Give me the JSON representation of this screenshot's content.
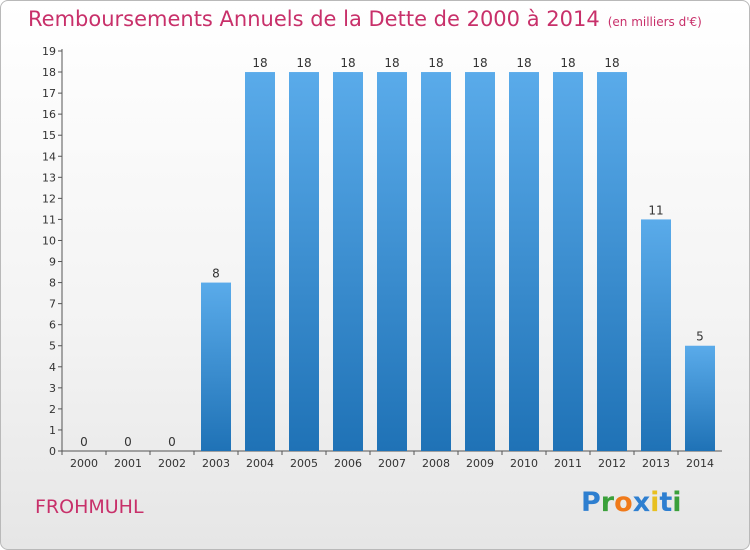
{
  "header": {
    "title": "Remboursements Annuels de la Dette de 2000 à 2014",
    "unit": "(en milliers d'€)"
  },
  "commune": "FROHMUHL",
  "logo": {
    "text": "Proxiti",
    "letter_colors": [
      "#2e7fd0",
      "#3aa03a",
      "#f07a1a",
      "#2e7fd0",
      "#e8c020",
      "#2e7fd0",
      "#3aa03a"
    ]
  },
  "colors": {
    "bar_top": "#5aabea",
    "bar_bottom": "#1f72b6",
    "axis": "#555555",
    "title": "#c8306a"
  },
  "chart_data": {
    "type": "bar",
    "title": "Remboursements Annuels de la Dette de 2000 à 2014",
    "xlabel": "",
    "ylabel": "",
    "categories": [
      "2000",
      "2001",
      "2002",
      "2003",
      "2004",
      "2005",
      "2006",
      "2007",
      "2008",
      "2009",
      "2010",
      "2011",
      "2012",
      "2013",
      "2014"
    ],
    "values": [
      0,
      0,
      0,
      8,
      18,
      18,
      18,
      18,
      18,
      18,
      18,
      18,
      18,
      11,
      5
    ],
    "ylim": [
      0,
      19
    ],
    "yticks": [
      0,
      1,
      2,
      3,
      4,
      5,
      6,
      7,
      8,
      9,
      10,
      11,
      12,
      13,
      14,
      15,
      16,
      17,
      18,
      19
    ],
    "grid": false
  }
}
